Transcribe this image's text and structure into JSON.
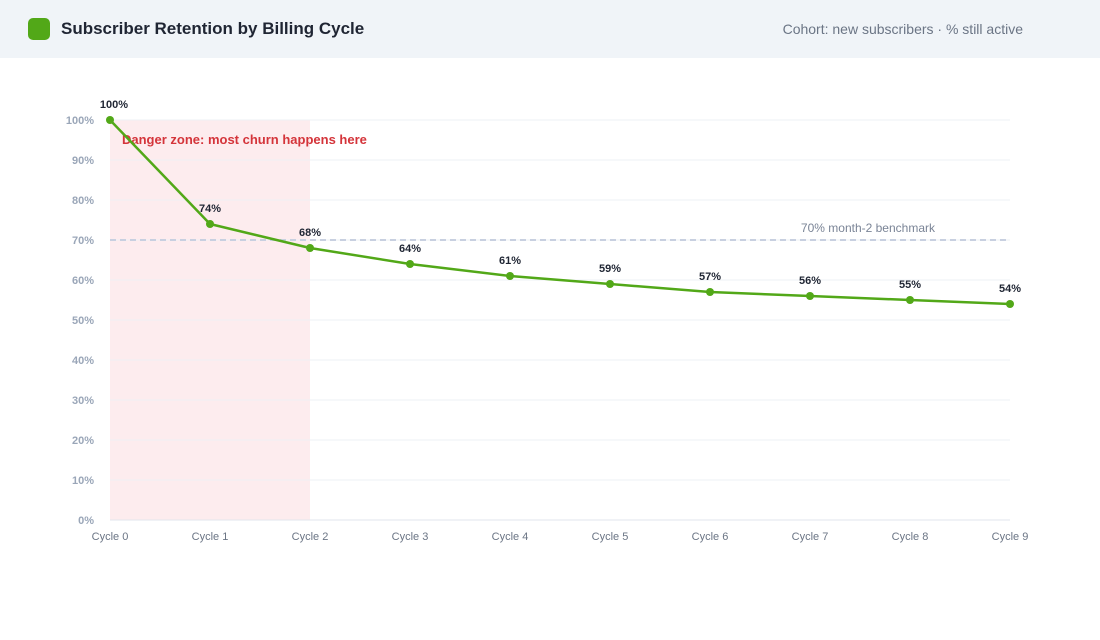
{
  "header": {
    "title": "Subscriber Retention by Billing Cycle",
    "subtitle": "Cohort: new subscribers · % still active"
  },
  "colors": {
    "accent": "#52a818",
    "danger_band": "#fdecee",
    "danger_text": "#d4343a",
    "benchmark": "#c8d0e0",
    "grid": "#eef0f4"
  },
  "icons": {
    "logo": "green-square-icon"
  },
  "chart_data": {
    "type": "line",
    "categories": [
      "Cycle 0",
      "Cycle 1",
      "Cycle 2",
      "Cycle 3",
      "Cycle 4",
      "Cycle 5",
      "Cycle 6",
      "Cycle 7",
      "Cycle 8",
      "Cycle 9"
    ],
    "values": [
      100,
      74,
      68,
      64,
      61,
      59,
      57,
      56,
      55,
      54
    ],
    "data_labels": [
      "100%",
      "74%",
      "68%",
      "64%",
      "61%",
      "59%",
      "57%",
      "56%",
      "55%",
      "54%"
    ],
    "ylim": [
      0,
      100
    ],
    "yticks": [
      0,
      10,
      20,
      30,
      40,
      50,
      60,
      70,
      80,
      90,
      100
    ],
    "ytick_labels": [
      "0%",
      "10%",
      "20%",
      "30%",
      "40%",
      "50%",
      "60%",
      "70%",
      "80%",
      "90%",
      "100%"
    ],
    "grid": true,
    "benchmark": {
      "value": 70,
      "label": "70% month-2 benchmark"
    },
    "shaded_region": {
      "from_category": "Cycle 0",
      "to_category": "Cycle 2",
      "label": "Danger zone: most churn happens here"
    }
  }
}
